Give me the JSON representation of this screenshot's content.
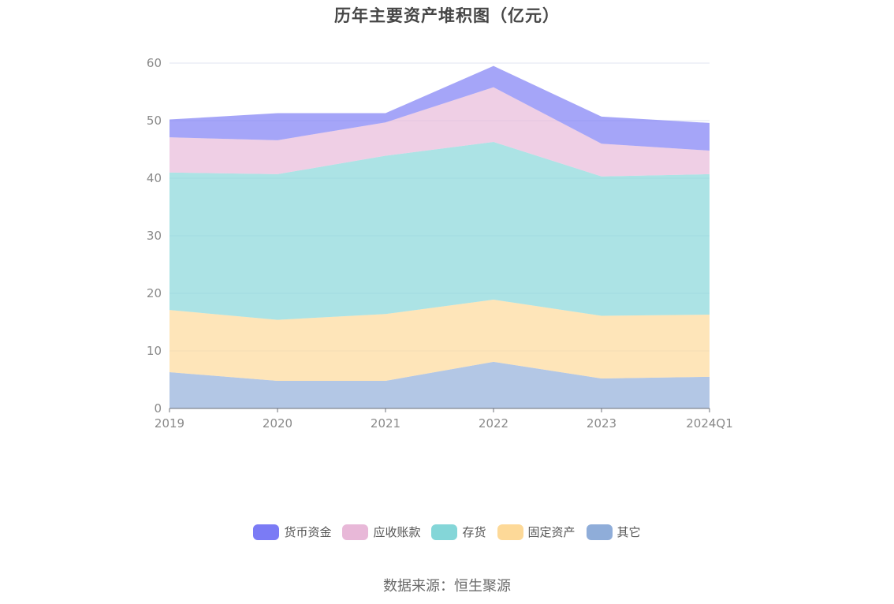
{
  "chart_data": {
    "type": "area",
    "stacked": true,
    "title": "历年主要资产堆积图（亿元）",
    "categories": [
      "2019",
      "2020",
      "2021",
      "2022",
      "2023",
      "2024Q1"
    ],
    "y_ticks": [
      "0",
      "10",
      "20",
      "30",
      "40",
      "50",
      "60"
    ],
    "ylim": [
      0,
      60
    ],
    "grid": true,
    "legend_position": "bottom",
    "series": [
      {
        "name": "其它",
        "color": "#8fadd9",
        "values": [
          6.3,
          4.8,
          4.8,
          8.1,
          5.2,
          5.5
        ]
      },
      {
        "name": "固定资产",
        "color": "#fdd998",
        "values": [
          10.8,
          10.6,
          11.6,
          10.8,
          10.9,
          10.8
        ]
      },
      {
        "name": "存货",
        "color": "#84d6d8",
        "values": [
          23.9,
          25.3,
          27.5,
          27.4,
          24.2,
          24.4
        ]
      },
      {
        "name": "应收账款",
        "color": "#e8b8d8",
        "values": [
          6.1,
          5.9,
          5.8,
          9.5,
          5.7,
          4.1
        ]
      },
      {
        "name": "货币资金",
        "color": "#7b7bf5",
        "values": [
          3.1,
          4.7,
          1.6,
          3.7,
          4.7,
          4.8
        ]
      }
    ],
    "legend_order": [
      "货币资金",
      "应收账款",
      "存货",
      "固定资产",
      "其它"
    ]
  },
  "footer": {
    "source": "数据来源：恒生聚源"
  },
  "style": {
    "axis_color": "#6e7079",
    "grid_color": "#e0e6f1"
  }
}
